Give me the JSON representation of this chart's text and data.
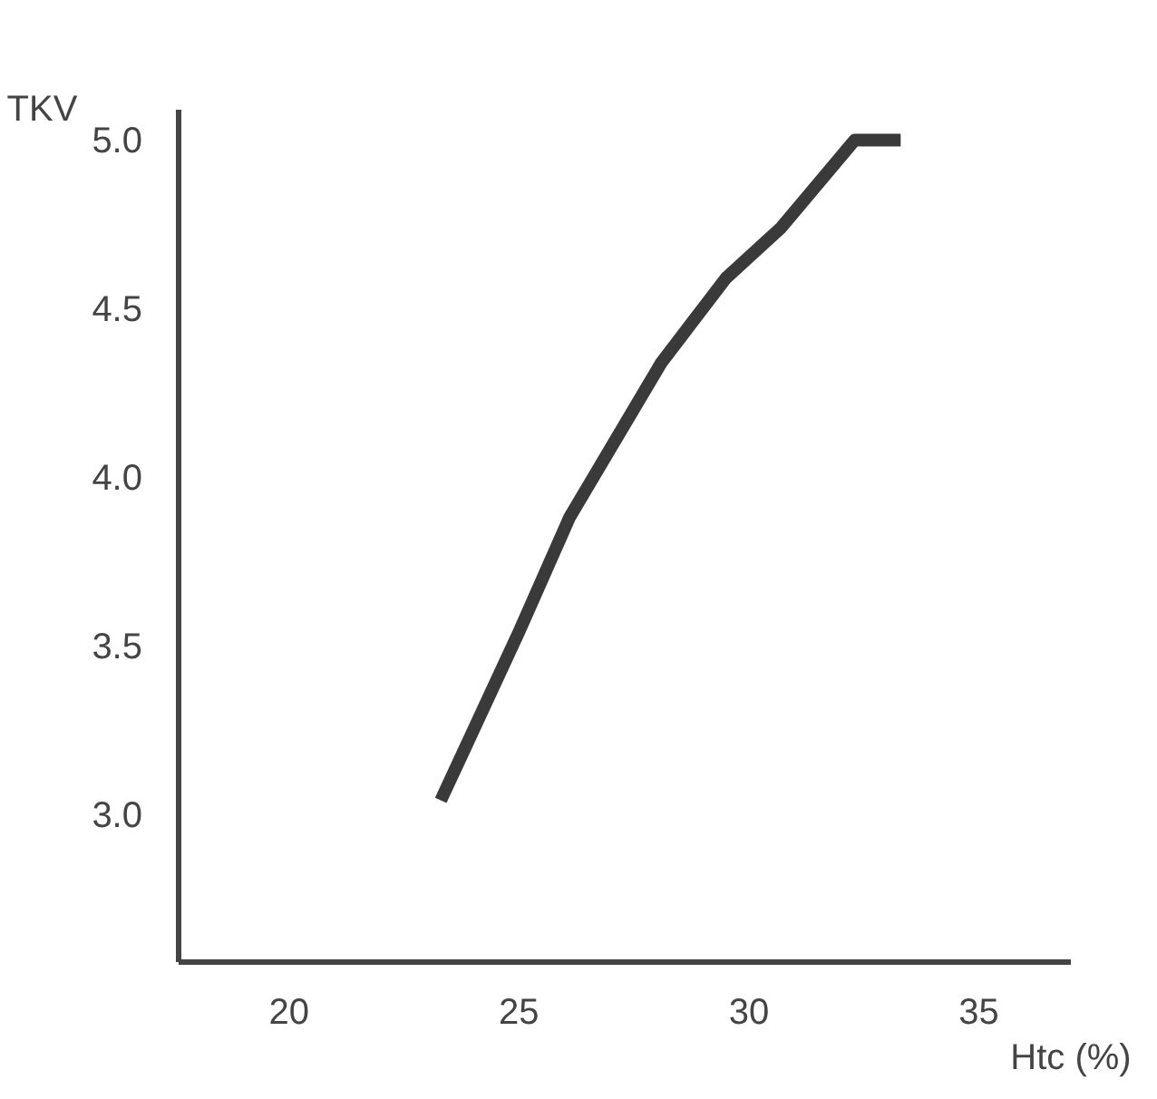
{
  "chart_data": {
    "type": "line",
    "xlabel": "Htc (%)",
    "ylabel": "TKV",
    "x": [
      23.3,
      25.0,
      26.1,
      28.1,
      29.5,
      30.7,
      32.3,
      33.3
    ],
    "series": [
      {
        "color": "#3a3a3a",
        "values": [
          3.04,
          3.54,
          3.88,
          4.34,
          4.59,
          4.74,
          5.0,
          5.0
        ]
      }
    ],
    "xlim": [
      17.6,
      37.0
    ],
    "ylim": [
      2.56,
      5.09
    ],
    "xticks": [
      20,
      25,
      30,
      35
    ],
    "yticks": [
      {
        "value": 3.0,
        "label": "3.0"
      },
      {
        "value": 3.5,
        "label": "3.5"
      },
      {
        "value": 4.0,
        "label": "4.0"
      },
      {
        "value": 4.5,
        "label": "4.5"
      },
      {
        "value": 5.0,
        "label": "5.0"
      }
    ],
    "grid": false
  }
}
